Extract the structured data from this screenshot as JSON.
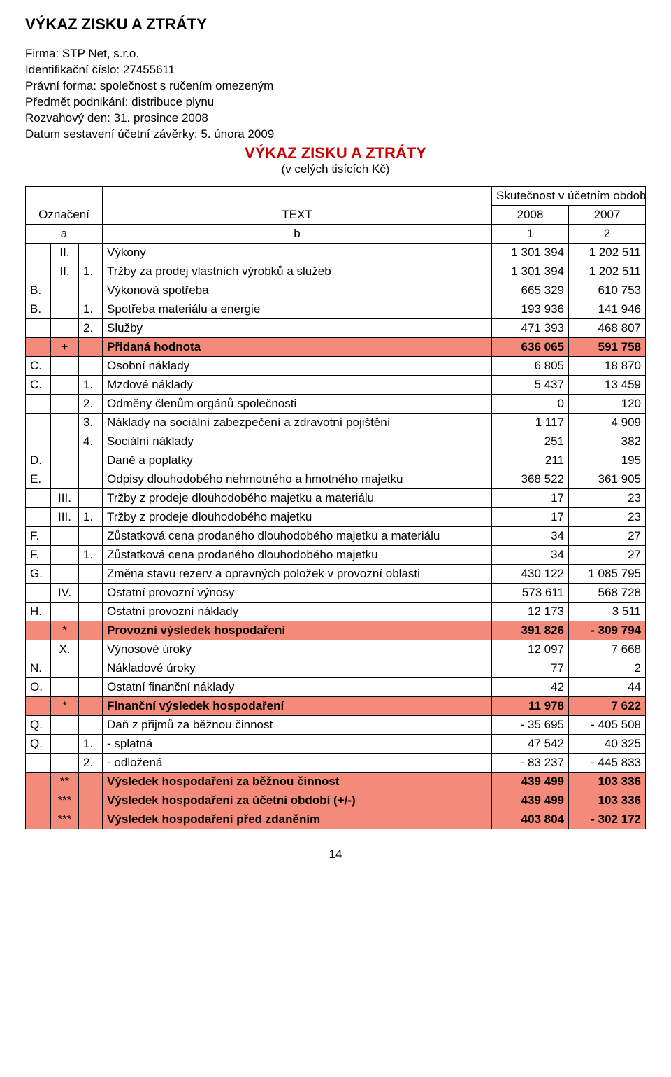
{
  "title": "VÝKAZ ZISKU A ZTRÁTY",
  "firm": {
    "name": "Firma: STP Net, s.r.o.",
    "id": "Identifikační číslo: 27455611",
    "legal_form": "Právní forma: společnost s ručením omezeným",
    "business": "Předmět podnikání: distribuce plynu",
    "balance_date": "Rozvahový den: 31. prosince 2008",
    "statement_date": "Datum sestavení účetní závěrky: 5. února 2009"
  },
  "subheader": {
    "title": "VÝKAZ ZISKU A ZTRÁTY",
    "units": "(v celých tisících Kč)"
  },
  "table_header": {
    "oznaceni": "Označení",
    "text": "TEXT",
    "period_label": "Skutečnost v účetním období",
    "year1": "2008",
    "year2": "2007",
    "a": "a",
    "b": "b",
    "c1": "1",
    "c2": "2"
  },
  "colors": {
    "highlight": "#f48a7a",
    "title_red": "#cc0000",
    "border": "#000000",
    "text": "#000000",
    "bg": "#ffffff"
  },
  "rows": [
    {
      "a": "",
      "b": "II.",
      "c": "",
      "text": "Výkony",
      "v1": "1 301 394",
      "v2": "1 202 511",
      "hl": false,
      "bold": false
    },
    {
      "a": "",
      "b": "II.",
      "c": "1.",
      "text": "Tržby za prodej vlastních výrobků a služeb",
      "v1": "1 301 394",
      "v2": "1 202 511",
      "hl": false,
      "bold": false
    },
    {
      "a": "B.",
      "b": "",
      "c": "",
      "text": "Výkonová spotřeba",
      "v1": "665 329",
      "v2": "610 753",
      "hl": false,
      "bold": false
    },
    {
      "a": "B.",
      "b": "",
      "c": "1.",
      "text": "Spotřeba materiálu a energie",
      "v1": "193 936",
      "v2": "141 946",
      "hl": false,
      "bold": false
    },
    {
      "a": "",
      "b": "",
      "c": "2.",
      "text": "Služby",
      "v1": "471 393",
      "v2": "468 807",
      "hl": false,
      "bold": false
    },
    {
      "a": "",
      "b": "+",
      "c": "",
      "text": "Přidaná hodnota",
      "v1": "636 065",
      "v2": "591 758",
      "hl": true,
      "bold": true
    },
    {
      "a": "C.",
      "b": "",
      "c": "",
      "text": "Osobní náklady",
      "v1": "6 805",
      "v2": "18 870",
      "hl": false,
      "bold": false
    },
    {
      "a": "C.",
      "b": "",
      "c": "1.",
      "text": "Mzdové náklady",
      "v1": "5 437",
      "v2": "13 459",
      "hl": false,
      "bold": false
    },
    {
      "a": "",
      "b": "",
      "c": "2.",
      "text": "Odměny členům orgánů společnosti",
      "v1": "0",
      "v2": "120",
      "hl": false,
      "bold": false
    },
    {
      "a": "",
      "b": "",
      "c": "3.",
      "text": "Náklady na sociální zabezpečení a zdravotní pojištění",
      "v1": "1 117",
      "v2": "4 909",
      "hl": false,
      "bold": false
    },
    {
      "a": "",
      "b": "",
      "c": "4.",
      "text": "Sociální náklady",
      "v1": "251",
      "v2": "382",
      "hl": false,
      "bold": false
    },
    {
      "a": "D.",
      "b": "",
      "c": "",
      "text": "Daně a poplatky",
      "v1": "211",
      "v2": "195",
      "hl": false,
      "bold": false
    },
    {
      "a": "E.",
      "b": "",
      "c": "",
      "text": "Odpisy dlouhodobého nehmotného a hmotného majetku",
      "v1": "368 522",
      "v2": "361 905",
      "hl": false,
      "bold": false
    },
    {
      "a": "",
      "b": "III.",
      "c": "",
      "text": "Tržby z prodeje dlouhodobého majetku a materiálu",
      "v1": "17",
      "v2": "23",
      "hl": false,
      "bold": false
    },
    {
      "a": "",
      "b": "III.",
      "c": "1.",
      "text": "Tržby z prodeje dlouhodobého majetku",
      "v1": "17",
      "v2": "23",
      "hl": false,
      "bold": false
    },
    {
      "a": "F.",
      "b": "",
      "c": "",
      "text": "Zůstatková cena prodaného dlouhodobého majetku a materiálu",
      "v1": "34",
      "v2": "27",
      "hl": false,
      "bold": false
    },
    {
      "a": "F.",
      "b": "",
      "c": "1.",
      "text": "Zůstatková cena prodaného dlouhodobého majetku",
      "v1": "34",
      "v2": "27",
      "hl": false,
      "bold": false
    },
    {
      "a": "G.",
      "b": "",
      "c": "",
      "text": "Změna stavu rezerv a opravných položek v provozní oblasti",
      "v1": "430 122",
      "v2": "1 085 795",
      "hl": false,
      "bold": false
    },
    {
      "a": "",
      "b": "IV.",
      "c": "",
      "text": "Ostatní provozní výnosy",
      "v1": "573 611",
      "v2": "568 728",
      "hl": false,
      "bold": false
    },
    {
      "a": "H.",
      "b": "",
      "c": "",
      "text": "Ostatní provozní náklady",
      "v1": "12 173",
      "v2": "3 511",
      "hl": false,
      "bold": false
    },
    {
      "a": "",
      "b": "*",
      "c": "",
      "text": "Provozní výsledek hospodaření",
      "v1": "391 826",
      "v2": "-   309 794",
      "hl": true,
      "bold": true
    },
    {
      "a": "",
      "b": "X.",
      "c": "",
      "text": "Výnosové úroky",
      "v1": "12 097",
      "v2": "7 668",
      "hl": false,
      "bold": false
    },
    {
      "a": "N.",
      "b": "",
      "c": "",
      "text": "Nákladové úroky",
      "v1": "77",
      "v2": "2",
      "hl": false,
      "bold": false
    },
    {
      "a": "O.",
      "b": "",
      "c": "",
      "text": "Ostatní finanční náklady",
      "v1": "42",
      "v2": "44",
      "hl": false,
      "bold": false
    },
    {
      "a": "",
      "b": "*",
      "c": "",
      "text": "Finanční výsledek hospodaření",
      "v1": "11 978",
      "v2": "7 622",
      "hl": true,
      "bold": true
    },
    {
      "a": "Q.",
      "b": "",
      "c": "",
      "text": "Daň z přijmů za běžnou činnost",
      "v1": "-     35 695",
      "v2": "-   405 508",
      "hl": false,
      "bold": false
    },
    {
      "a": "Q.",
      "b": "",
      "c": "1.",
      "text": " - splatná",
      "v1": "47 542",
      "v2": "40 325",
      "hl": false,
      "bold": false
    },
    {
      "a": "",
      "b": "",
      "c": "2.",
      "text": " - odložená",
      "v1": "-     83 237",
      "v2": "-   445 833",
      "hl": false,
      "bold": false
    },
    {
      "a": "",
      "b": "**",
      "c": "",
      "text": "Výsledek hospodaření za běžnou činnost",
      "v1": "439 499",
      "v2": "103 336",
      "hl": true,
      "bold": true
    },
    {
      "a": "",
      "b": "***",
      "c": "",
      "text": "Výsledek hospodaření za účetní období (+/-)",
      "v1": "439 499",
      "v2": "103 336",
      "hl": true,
      "bold": true
    },
    {
      "a": "",
      "b": "***",
      "c": "",
      "text": "Výsledek hospodaření před zdaněním",
      "v1": "403 804",
      "v2": "-   302 172",
      "hl": true,
      "bold": true
    }
  ],
  "page_number": "14"
}
